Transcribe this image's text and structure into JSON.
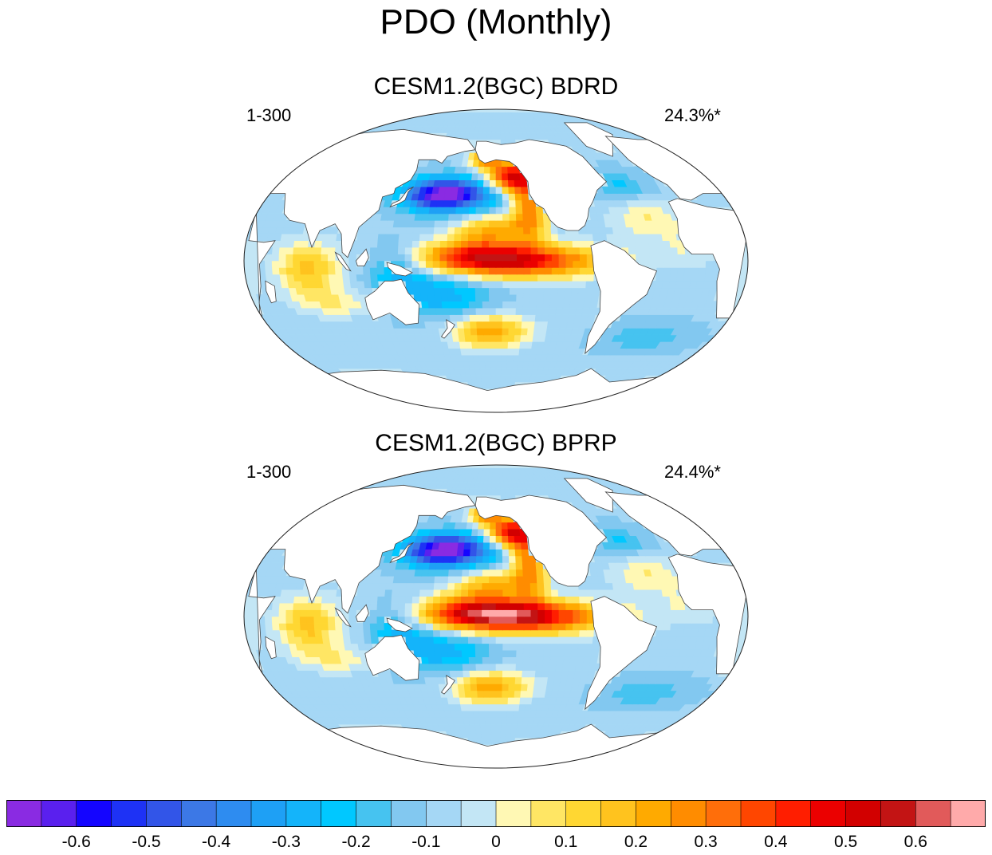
{
  "title": "PDO (Monthly)",
  "panels": [
    {
      "title": "CESM1.2(BGC) BDRD",
      "years": "1-300",
      "variance": "24.3%*",
      "north_pacific_min": -0.6,
      "equatorial_max": 0.55
    },
    {
      "title": "CESM1.2(BGC) BPRP",
      "years": "1-300",
      "variance": "24.4%*",
      "north_pacific_min": -0.6,
      "equatorial_max": 0.65
    }
  ],
  "colorbar": {
    "min": -0.7,
    "max": 0.7,
    "step": 0.05,
    "colors": [
      "#8a2be2",
      "#5a20ee",
      "#1405ff",
      "#1e32f5",
      "#3255e8",
      "#3c78e6",
      "#2e8cf0",
      "#1ea0f5",
      "#14b4fa",
      "#00c8ff",
      "#46c3f0",
      "#82c8f0",
      "#a5d7f5",
      "#c3e6f5",
      "#fff8b4",
      "#ffe664",
      "#ffd732",
      "#ffc31e",
      "#ffaa00",
      "#ff8c00",
      "#ff6e0a",
      "#ff4600",
      "#ff1e00",
      "#eb0000",
      "#d20000",
      "#c31414",
      "#e15a5a",
      "#ffaaaa"
    ],
    "tick_labels": [
      "-0.6",
      "-0.5",
      "-0.4",
      "-0.3",
      "-0.2",
      "-0.1",
      "0",
      "0.1",
      "0.2",
      "0.3",
      "0.4",
      "0.5",
      "0.6"
    ],
    "tick_values": [
      -0.6,
      -0.5,
      -0.4,
      -0.3,
      -0.2,
      -0.1,
      0,
      0.1,
      0.2,
      0.3,
      0.4,
      0.5,
      0.6
    ]
  }
}
